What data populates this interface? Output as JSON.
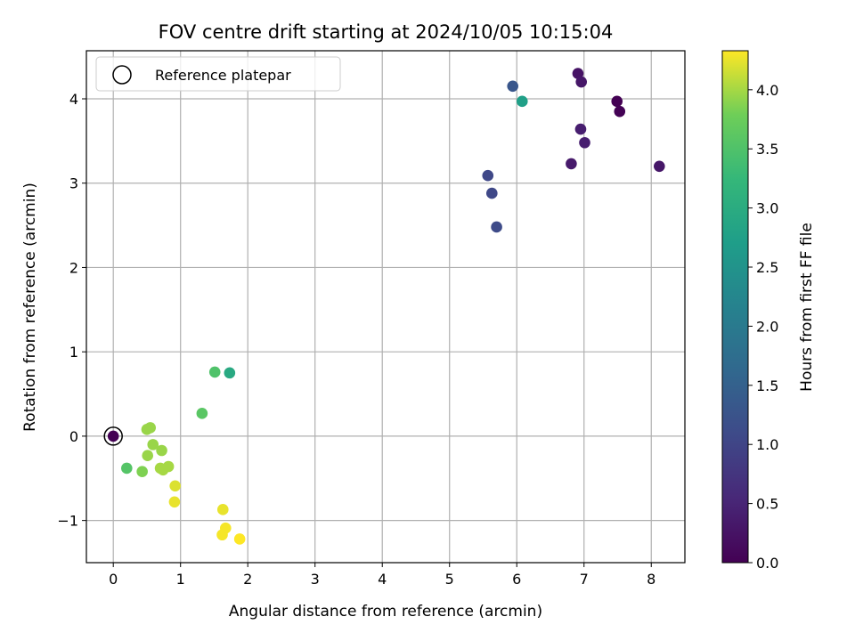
{
  "chart_data": {
    "type": "scatter",
    "title": "FOV centre drift starting at 2024/10/05 10:15:04",
    "xlabel": "Angular distance from reference (arcmin)",
    "ylabel": "Rotation from reference (arcmin)",
    "xlim": [
      -0.4,
      8.5
    ],
    "ylim": [
      -1.5,
      4.57
    ],
    "xticks": [
      0,
      1,
      2,
      3,
      4,
      5,
      6,
      7,
      8
    ],
    "yticks": [
      -1,
      0,
      1,
      2,
      3,
      4
    ],
    "ytick_labels": [
      "−1",
      "0",
      "1",
      "2",
      "3",
      "4"
    ],
    "grid": true,
    "legend": {
      "placement": "top-left",
      "entries": [
        {
          "label": "Reference platepar",
          "marker": "open-circle"
        }
      ]
    },
    "colorbar": {
      "label": "Hours from first FF file",
      "colormap": "viridis",
      "range": [
        0.0,
        4.33
      ],
      "ticks": [
        0.0,
        0.5,
        1.0,
        1.5,
        2.0,
        2.5,
        3.0,
        3.5,
        4.0
      ],
      "tick_labels": [
        "0.0",
        "0.5",
        "1.0",
        "1.5",
        "2.0",
        "2.5",
        "3.0",
        "3.5",
        "4.0"
      ]
    },
    "reference_point": {
      "x": 0.0,
      "y": 0.0
    },
    "points": [
      {
        "x": 0.0,
        "y": 0.0,
        "hours": 0.0
      },
      {
        "x": 7.49,
        "y": 3.97,
        "hours": 0.0
      },
      {
        "x": 7.53,
        "y": 3.85,
        "hours": 0.02
      },
      {
        "x": 6.91,
        "y": 4.3,
        "hours": 0.25
      },
      {
        "x": 6.96,
        "y": 4.2,
        "hours": 0.3
      },
      {
        "x": 8.12,
        "y": 3.2,
        "hours": 0.3
      },
      {
        "x": 6.81,
        "y": 3.23,
        "hours": 0.35
      },
      {
        "x": 6.95,
        "y": 3.64,
        "hours": 0.4
      },
      {
        "x": 7.01,
        "y": 3.48,
        "hours": 0.4
      },
      {
        "x": 5.57,
        "y": 3.09,
        "hours": 1.05
      },
      {
        "x": 5.63,
        "y": 2.88,
        "hours": 1.05
      },
      {
        "x": 5.7,
        "y": 2.48,
        "hours": 1.1
      },
      {
        "x": 5.94,
        "y": 4.15,
        "hours": 1.3
      },
      {
        "x": 6.08,
        "y": 3.97,
        "hours": 2.75
      },
      {
        "x": 1.73,
        "y": 0.75,
        "hours": 2.95
      },
      {
        "x": 1.51,
        "y": 0.76,
        "hours": 3.5
      },
      {
        "x": 1.32,
        "y": 0.27,
        "hours": 3.6
      },
      {
        "x": 0.2,
        "y": -0.38,
        "hours": 3.55
      },
      {
        "x": 0.43,
        "y": -0.42,
        "hours": 3.85
      },
      {
        "x": 0.5,
        "y": 0.08,
        "hours": 3.95
      },
      {
        "x": 0.55,
        "y": 0.1,
        "hours": 3.95
      },
      {
        "x": 0.59,
        "y": -0.1,
        "hours": 3.95
      },
      {
        "x": 0.51,
        "y": -0.23,
        "hours": 3.95
      },
      {
        "x": 0.72,
        "y": -0.17,
        "hours": 3.95
      },
      {
        "x": 0.7,
        "y": -0.38,
        "hours": 4.0
      },
      {
        "x": 0.74,
        "y": -0.4,
        "hours": 4.0
      },
      {
        "x": 0.82,
        "y": -0.36,
        "hours": 4.0
      },
      {
        "x": 0.92,
        "y": -0.59,
        "hours": 4.2
      },
      {
        "x": 0.91,
        "y": -0.78,
        "hours": 4.25
      },
      {
        "x": 1.63,
        "y": -0.87,
        "hours": 4.25
      },
      {
        "x": 1.67,
        "y": -1.09,
        "hours": 4.3
      },
      {
        "x": 1.62,
        "y": -1.17,
        "hours": 4.3
      },
      {
        "x": 1.88,
        "y": -1.22,
        "hours": 4.33
      }
    ]
  }
}
